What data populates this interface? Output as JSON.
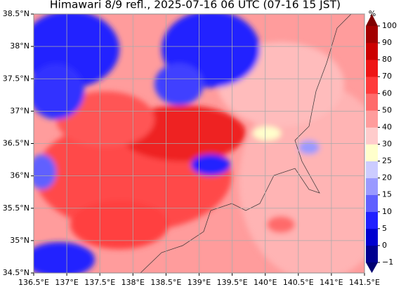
{
  "map": {
    "title": "Himawari 8/9 refl., 2025-07-16 06 UTC (07-16 15 JST)",
    "xlim": [
      136.5,
      141.5
    ],
    "ylim": [
      34.5,
      38.5
    ],
    "xticks": [
      {
        "value": 136.5,
        "label": "136.5°E"
      },
      {
        "value": 137,
        "label": "137°E"
      },
      {
        "value": 137.5,
        "label": "137.5°E"
      },
      {
        "value": 138,
        "label": "138°E"
      },
      {
        "value": 138.5,
        "label": "138.5°E"
      },
      {
        "value": 139,
        "label": "139°E"
      },
      {
        "value": 139.5,
        "label": "139.5°E"
      },
      {
        "value": 140,
        "label": "140°E"
      },
      {
        "value": 140.5,
        "label": "140.5°E"
      },
      {
        "value": 141,
        "label": "141°E"
      },
      {
        "value": 141.5,
        "label": "141.5°E"
      }
    ],
    "yticks": [
      {
        "value": 34.5,
        "label": "34.5°N"
      },
      {
        "value": 35,
        "label": "35°N"
      },
      {
        "value": 35.5,
        "label": "35.5°N"
      },
      {
        "value": 36,
        "label": "36°N"
      },
      {
        "value": 36.5,
        "label": "36.5°N"
      },
      {
        "value": 37,
        "label": "37°N"
      },
      {
        "value": 37.5,
        "label": "37.5°N"
      },
      {
        "value": 38,
        "label": "38°N"
      },
      {
        "value": 38.5,
        "label": "38.5°N"
      }
    ],
    "colorbar": {
      "unit": "%",
      "levels": [
        {
          "value": -1,
          "label": "−1"
        },
        0,
        5,
        10,
        15,
        20,
        25,
        30,
        40,
        50,
        60,
        70,
        80,
        90,
        100
      ],
      "colors": [
        "#000090",
        "#0000d0",
        "#2020ff",
        "#6060ff",
        "#9a9aff",
        "#ccccff",
        "#ffffcc",
        "#ffcccc",
        "#ff9c9c",
        "#ff6b6b",
        "#ff3a3a",
        "#ee1515",
        "#cc0000",
        "#a30000"
      ],
      "under": "#000070",
      "over": "#800000"
    }
  }
}
